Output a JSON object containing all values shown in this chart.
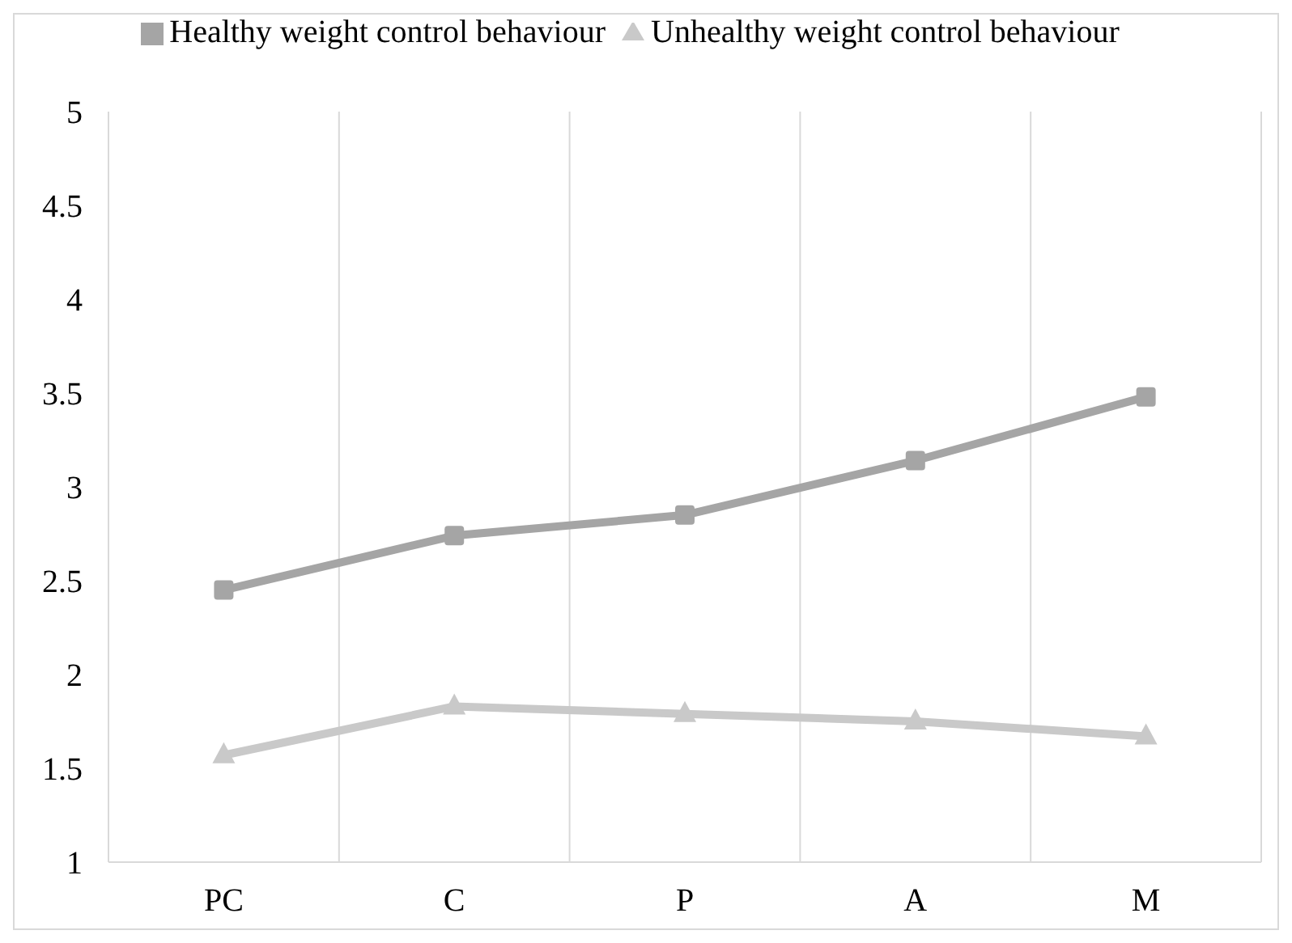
{
  "chart_data": {
    "type": "line",
    "categories": [
      "PC",
      "C",
      "P",
      "A",
      "M"
    ],
    "series": [
      {
        "name": "Healthy weight control behaviour",
        "color": "#a5a5a5",
        "marker": "square",
        "values": [
          2.45,
          2.74,
          2.85,
          3.14,
          3.48
        ]
      },
      {
        "name": "Unhealthy weight control behaviour",
        "color": "#c9c9c9",
        "marker": "triangle",
        "values": [
          1.57,
          1.83,
          1.79,
          1.75,
          1.67
        ]
      }
    ],
    "ylim": [
      1,
      5
    ],
    "yticks": [
      1,
      1.5,
      2,
      2.5,
      3,
      3.5,
      4,
      4.5,
      5
    ],
    "grid": "x",
    "legend": "top"
  }
}
